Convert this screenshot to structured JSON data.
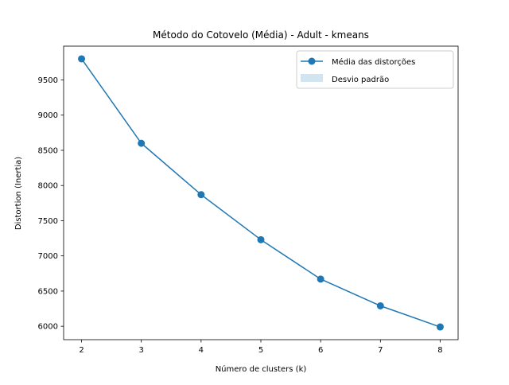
{
  "chart_data": {
    "type": "line",
    "title": "Método do Cotovelo (Média) - Adult - kmeans",
    "xlabel": "Número de clusters (k)",
    "ylabel": "Distortion (Inertia)",
    "x": [
      2,
      3,
      4,
      5,
      6,
      7,
      8
    ],
    "series": [
      {
        "name": "Média das distorções",
        "values": [
          9800,
          8600,
          7870,
          7230,
          6670,
          6290,
          5990
        ],
        "color": "#1f77b4",
        "marker": "circle"
      }
    ],
    "band": {
      "name": "Desvio padrão",
      "color": "#1f77b4",
      "opacity": 0.2,
      "lower": [
        9800,
        8600,
        7870,
        7230,
        6670,
        6290,
        5990
      ],
      "upper": [
        9800,
        8600,
        7870,
        7230,
        6670,
        6290,
        5990
      ]
    },
    "xticks": [
      2,
      3,
      4,
      5,
      6,
      7,
      8
    ],
    "yticks": [
      6000,
      6500,
      7000,
      7500,
      8000,
      8500,
      9000,
      9500
    ],
    "xlim": [
      1.7,
      8.3
    ],
    "ylim": [
      5809.5,
      9980.5
    ],
    "grid": false,
    "legend_position": "top-right"
  }
}
